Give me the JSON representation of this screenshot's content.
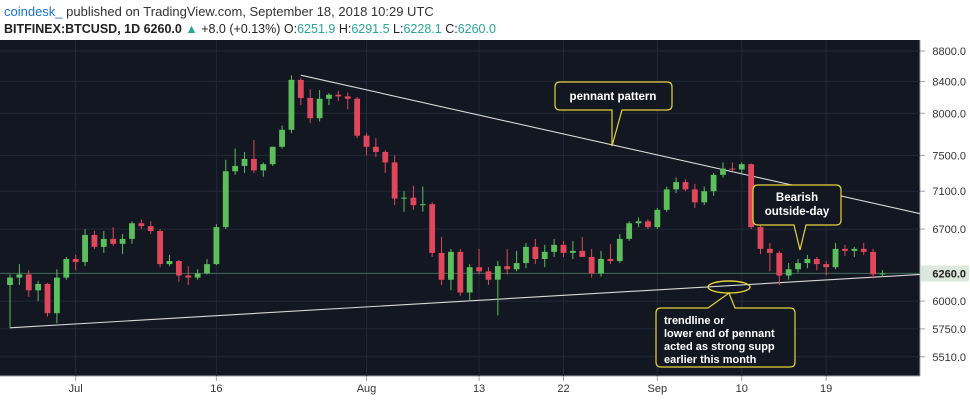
{
  "header": {
    "brand": "coindesk_",
    "published": "published on TradingView.com, September 18, 2018 10:29 UTC",
    "symbol": "BITFINEX:BTCUSD, 1D",
    "last": "6260.0",
    "change": "+8.0 (+0.13%)",
    "open_label": "O:",
    "open": "6251.9",
    "high_label": "H:",
    "high": "6291.5",
    "low_label": "L:",
    "low": "6228.1",
    "close_label": "C:",
    "close": "6260.0"
  },
  "colors": {
    "background": "#131722",
    "up": "#5dbe5d",
    "down": "#e0475a",
    "trendline": "#d8d8d8",
    "callout": "#e6d43a",
    "price_tag": "#dde8dd"
  },
  "chart_data": {
    "type": "candlestick",
    "scale": "log",
    "ylim": [
      5350,
      8950
    ],
    "yticks": [
      "8800.0",
      "8400.0",
      "8000.0",
      "7500.0",
      "7100.0",
      "6700.0",
      "6260.0",
      "6000.0",
      "5750.0",
      "5510.0"
    ],
    "last_price": "6260.0",
    "x_labels": [
      {
        "label": "Jul",
        "date": "2018-07-01"
      },
      {
        "label": "16",
        "date": "2018-07-16"
      },
      {
        "label": "Aug",
        "date": "2018-08-01"
      },
      {
        "label": "13",
        "date": "2018-08-13"
      },
      {
        "label": "22",
        "date": "2018-08-22"
      },
      {
        "label": "Sep",
        "date": "2018-09-01"
      },
      {
        "label": "10",
        "date": "2018-09-10"
      },
      {
        "label": "19",
        "date": "2018-09-19"
      }
    ],
    "x_range": [
      "2018-06-24",
      "2018-09-29"
    ],
    "candles": [
      {
        "date": "2018-06-24",
        "o": 6150,
        "h": 6250,
        "l": 5760,
        "c": 6220
      },
      {
        "date": "2018-06-25",
        "o": 6220,
        "h": 6350,
        "l": 6150,
        "c": 6250
      },
      {
        "date": "2018-06-26",
        "o": 6250,
        "h": 6290,
        "l": 6040,
        "c": 6100
      },
      {
        "date": "2018-06-27",
        "o": 6100,
        "h": 6190,
        "l": 6000,
        "c": 6160
      },
      {
        "date": "2018-06-28",
        "o": 6160,
        "h": 6170,
        "l": 5860,
        "c": 5890
      },
      {
        "date": "2018-06-29",
        "o": 5890,
        "h": 6300,
        "l": 5800,
        "c": 6220
      },
      {
        "date": "2018-06-30",
        "o": 6220,
        "h": 6420,
        "l": 6200,
        "c": 6400
      },
      {
        "date": "2018-07-01",
        "o": 6400,
        "h": 6440,
        "l": 6290,
        "c": 6370
      },
      {
        "date": "2018-07-02",
        "o": 6370,
        "h": 6700,
        "l": 6330,
        "c": 6640
      },
      {
        "date": "2018-07-03",
        "o": 6640,
        "h": 6680,
        "l": 6500,
        "c": 6520
      },
      {
        "date": "2018-07-04",
        "o": 6520,
        "h": 6680,
        "l": 6460,
        "c": 6600
      },
      {
        "date": "2018-07-05",
        "o": 6600,
        "h": 6720,
        "l": 6530,
        "c": 6550
      },
      {
        "date": "2018-07-06",
        "o": 6550,
        "h": 6650,
        "l": 6450,
        "c": 6600
      },
      {
        "date": "2018-07-07",
        "o": 6600,
        "h": 6780,
        "l": 6550,
        "c": 6760
      },
      {
        "date": "2018-07-08",
        "o": 6760,
        "h": 6800,
        "l": 6700,
        "c": 6730
      },
      {
        "date": "2018-07-09",
        "o": 6730,
        "h": 6780,
        "l": 6650,
        "c": 6680
      },
      {
        "date": "2018-07-10",
        "o": 6680,
        "h": 6700,
        "l": 6320,
        "c": 6350
      },
      {
        "date": "2018-07-11",
        "o": 6350,
        "h": 6440,
        "l": 6330,
        "c": 6380
      },
      {
        "date": "2018-07-12",
        "o": 6380,
        "h": 6390,
        "l": 6180,
        "c": 6240
      },
      {
        "date": "2018-07-13",
        "o": 6240,
        "h": 6330,
        "l": 6150,
        "c": 6220
      },
      {
        "date": "2018-07-14",
        "o": 6220,
        "h": 6300,
        "l": 6200,
        "c": 6260
      },
      {
        "date": "2018-07-15",
        "o": 6260,
        "h": 6400,
        "l": 6250,
        "c": 6350
      },
      {
        "date": "2018-07-16",
        "o": 6350,
        "h": 6750,
        "l": 6340,
        "c": 6720
      },
      {
        "date": "2018-07-17",
        "o": 6720,
        "h": 7450,
        "l": 6700,
        "c": 7320
      },
      {
        "date": "2018-07-18",
        "o": 7320,
        "h": 7580,
        "l": 7280,
        "c": 7380
      },
      {
        "date": "2018-07-19",
        "o": 7380,
        "h": 7540,
        "l": 7300,
        "c": 7460
      },
      {
        "date": "2018-07-20",
        "o": 7460,
        "h": 7680,
        "l": 7300,
        "c": 7330
      },
      {
        "date": "2018-07-21",
        "o": 7330,
        "h": 7420,
        "l": 7260,
        "c": 7400
      },
      {
        "date": "2018-07-22",
        "o": 7400,
        "h": 7600,
        "l": 7380,
        "c": 7600
      },
      {
        "date": "2018-07-23",
        "o": 7600,
        "h": 7850,
        "l": 7580,
        "c": 7800
      },
      {
        "date": "2018-07-24",
        "o": 7800,
        "h": 8480,
        "l": 7760,
        "c": 8420
      },
      {
        "date": "2018-07-25",
        "o": 8420,
        "h": 8450,
        "l": 8100,
        "c": 8190
      },
      {
        "date": "2018-07-26",
        "o": 8190,
        "h": 8300,
        "l": 7880,
        "c": 7940
      },
      {
        "date": "2018-07-27",
        "o": 7940,
        "h": 8290,
        "l": 7900,
        "c": 8180
      },
      {
        "date": "2018-07-28",
        "o": 8180,
        "h": 8250,
        "l": 8100,
        "c": 8230
      },
      {
        "date": "2018-07-29",
        "o": 8230,
        "h": 8280,
        "l": 8150,
        "c": 8210
      },
      {
        "date": "2018-07-30",
        "o": 8210,
        "h": 8260,
        "l": 8050,
        "c": 8180
      },
      {
        "date": "2018-07-31",
        "o": 8180,
        "h": 8200,
        "l": 7700,
        "c": 7730
      },
      {
        "date": "2018-08-01",
        "o": 7730,
        "h": 7760,
        "l": 7500,
        "c": 7600
      },
      {
        "date": "2018-08-02",
        "o": 7600,
        "h": 7700,
        "l": 7480,
        "c": 7540
      },
      {
        "date": "2018-08-03",
        "o": 7540,
        "h": 7560,
        "l": 7300,
        "c": 7420
      },
      {
        "date": "2018-08-04",
        "o": 7420,
        "h": 7500,
        "l": 6950,
        "c": 7020
      },
      {
        "date": "2018-08-05",
        "o": 7020,
        "h": 7100,
        "l": 6880,
        "c": 7030
      },
      {
        "date": "2018-08-06",
        "o": 7030,
        "h": 7160,
        "l": 6900,
        "c": 6950
      },
      {
        "date": "2018-08-07",
        "o": 6950,
        "h": 7150,
        "l": 6880,
        "c": 6960
      },
      {
        "date": "2018-08-08",
        "o": 6960,
        "h": 6980,
        "l": 6420,
        "c": 6460
      },
      {
        "date": "2018-08-09",
        "o": 6460,
        "h": 6620,
        "l": 6150,
        "c": 6200
      },
      {
        "date": "2018-08-10",
        "o": 6200,
        "h": 6500,
        "l": 6100,
        "c": 6470
      },
      {
        "date": "2018-08-11",
        "o": 6470,
        "h": 6500,
        "l": 6050,
        "c": 6080
      },
      {
        "date": "2018-08-12",
        "o": 6080,
        "h": 6350,
        "l": 6000,
        "c": 6320
      },
      {
        "date": "2018-08-13",
        "o": 6320,
        "h": 6500,
        "l": 6250,
        "c": 6280
      },
      {
        "date": "2018-08-14",
        "o": 6280,
        "h": 6320,
        "l": 6150,
        "c": 6200
      },
      {
        "date": "2018-08-15",
        "o": 6200,
        "h": 6380,
        "l": 5870,
        "c": 6330
      },
      {
        "date": "2018-08-16",
        "o": 6330,
        "h": 6500,
        "l": 6250,
        "c": 6300
      },
      {
        "date": "2018-08-17",
        "o": 6300,
        "h": 6480,
        "l": 6280,
        "c": 6360
      },
      {
        "date": "2018-08-18",
        "o": 6360,
        "h": 6560,
        "l": 6310,
        "c": 6520
      },
      {
        "date": "2018-08-19",
        "o": 6520,
        "h": 6600,
        "l": 6350,
        "c": 6400
      },
      {
        "date": "2018-08-20",
        "o": 6400,
        "h": 6540,
        "l": 6320,
        "c": 6470
      },
      {
        "date": "2018-08-21",
        "o": 6470,
        "h": 6600,
        "l": 6420,
        "c": 6540
      },
      {
        "date": "2018-08-22",
        "o": 6540,
        "h": 6580,
        "l": 6420,
        "c": 6460
      },
      {
        "date": "2018-08-23",
        "o": 6460,
        "h": 6580,
        "l": 6400,
        "c": 6480
      },
      {
        "date": "2018-08-24",
        "o": 6480,
        "h": 6620,
        "l": 6420,
        "c": 6420
      },
      {
        "date": "2018-08-25",
        "o": 6420,
        "h": 6500,
        "l": 6220,
        "c": 6260
      },
      {
        "date": "2018-08-26",
        "o": 6260,
        "h": 6480,
        "l": 6230,
        "c": 6400
      },
      {
        "date": "2018-08-27",
        "o": 6400,
        "h": 6550,
        "l": 6350,
        "c": 6380
      },
      {
        "date": "2018-08-28",
        "o": 6380,
        "h": 6650,
        "l": 6360,
        "c": 6600
      },
      {
        "date": "2018-08-29",
        "o": 6600,
        "h": 6780,
        "l": 6580,
        "c": 6760
      },
      {
        "date": "2018-08-30",
        "o": 6760,
        "h": 6820,
        "l": 6720,
        "c": 6780
      },
      {
        "date": "2018-08-31",
        "o": 6780,
        "h": 6800,
        "l": 6700,
        "c": 6720
      },
      {
        "date": "2018-09-01",
        "o": 6720,
        "h": 6920,
        "l": 6700,
        "c": 6900
      },
      {
        "date": "2018-09-02",
        "o": 6900,
        "h": 7150,
        "l": 6880,
        "c": 7120
      },
      {
        "date": "2018-09-03",
        "o": 7120,
        "h": 7250,
        "l": 7080,
        "c": 7200
      },
      {
        "date": "2018-09-04",
        "o": 7200,
        "h": 7230,
        "l": 7100,
        "c": 7120
      },
      {
        "date": "2018-09-05",
        "o": 7120,
        "h": 7180,
        "l": 6920,
        "c": 6980
      },
      {
        "date": "2018-09-06",
        "o": 6980,
        "h": 7150,
        "l": 6950,
        "c": 7100
      },
      {
        "date": "2018-09-07",
        "o": 7100,
        "h": 7300,
        "l": 7050,
        "c": 7280
      },
      {
        "date": "2018-09-08",
        "o": 7280,
        "h": 7420,
        "l": 7250,
        "c": 7350
      },
      {
        "date": "2018-09-09",
        "o": 7350,
        "h": 7420,
        "l": 7320,
        "c": 7340
      },
      {
        "date": "2018-09-10",
        "o": 7340,
        "h": 7420,
        "l": 7300,
        "c": 7400
      },
      {
        "date": "2018-09-11",
        "o": 7400,
        "h": 7410,
        "l": 6700,
        "c": 6720
      },
      {
        "date": "2018-09-12",
        "o": 6720,
        "h": 6800,
        "l": 6450,
        "c": 6500
      },
      {
        "date": "2018-09-13",
        "o": 6500,
        "h": 6560,
        "l": 6280,
        "c": 6460
      },
      {
        "date": "2018-09-14",
        "o": 6460,
        "h": 6480,
        "l": 6150,
        "c": 6240
      },
      {
        "date": "2018-09-15",
        "o": 6240,
        "h": 6360,
        "l": 6200,
        "c": 6300
      },
      {
        "date": "2018-09-16",
        "o": 6300,
        "h": 6400,
        "l": 6270,
        "c": 6360
      },
      {
        "date": "2018-09-17",
        "o": 6360,
        "h": 6440,
        "l": 6310,
        "c": 6400
      },
      {
        "date": "2018-09-18",
        "o": 6400,
        "h": 6420,
        "l": 6290,
        "c": 6350
      },
      {
        "date": "2018-09-19",
        "o": 6350,
        "h": 6380,
        "l": 6240,
        "c": 6320
      },
      {
        "date": "2018-09-20",
        "o": 6320,
        "h": 6560,
        "l": 6300,
        "c": 6500
      },
      {
        "date": "2018-09-21",
        "o": 6500,
        "h": 6540,
        "l": 6430,
        "c": 6480
      },
      {
        "date": "2018-09-22",
        "o": 6480,
        "h": 6520,
        "l": 6420,
        "c": 6500
      },
      {
        "date": "2018-09-23",
        "o": 6500,
        "h": 6560,
        "l": 6440,
        "c": 6470
      },
      {
        "date": "2018-09-24",
        "o": 6470,
        "h": 6500,
        "l": 6210,
        "c": 6252
      },
      {
        "date": "2018-09-25",
        "o": 6252,
        "h": 6292,
        "l": 6228,
        "c": 6260
      }
    ],
    "trendlines": [
      {
        "name": "upper",
        "from": {
          "date": "2018-07-25",
          "price": 8480
        },
        "to": {
          "date": "2018-09-29",
          "price": 6860
        }
      },
      {
        "name": "lower",
        "from": {
          "date": "2018-06-24",
          "price": 5760
        },
        "to": {
          "date": "2018-09-29",
          "price": 6250
        }
      }
    ],
    "annotations": [
      {
        "id": "pennant",
        "lines": [
          "pennant pattern"
        ]
      },
      {
        "id": "bearish",
        "lines": [
          "Bearish",
          "outside-day"
        ]
      },
      {
        "id": "trendline",
        "lines": [
          "trendline or",
          "lower end of pennant",
          "acted as strong supp",
          "earlier this month"
        ]
      }
    ]
  }
}
